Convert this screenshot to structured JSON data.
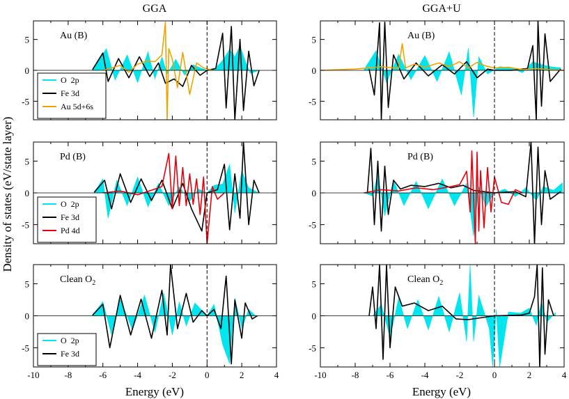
{
  "figure": {
    "ylabel": "Density of states (eV/state layer)",
    "xlabel": "Energy (eV)"
  },
  "colors": {
    "o2p": "#00e5ee",
    "fe3d": "#000000",
    "au": "#f0a400",
    "pd": "#e8000b",
    "axis": "#000000",
    "fermi": "#000000"
  },
  "chart_data": [
    {
      "id": "gga-au",
      "type": "line",
      "column_title": "GGA",
      "panel_label": "Au (B)",
      "xlim": [
        -10,
        4
      ],
      "ylim": [
        -8,
        8
      ],
      "xticks": [
        -10,
        -8,
        -6,
        -4,
        -2,
        0,
        2,
        4
      ],
      "yticks": [
        -5,
        0,
        5
      ],
      "fermi_level": 0,
      "legend": [
        "O  2p",
        "Fe 3d",
        "Au 5d+6s"
      ],
      "series": [
        {
          "name": "O  2p",
          "style": "filled",
          "x": [
            -6.6,
            -6.1,
            -5.8,
            -5.3,
            -4.6,
            -4.0,
            -3.4,
            -3.0,
            -2.6,
            -2.3,
            -1.8,
            -1.3,
            -0.8,
            -0.3,
            0.0,
            0.4,
            0.9,
            1.3,
            1.6,
            1.9,
            2.2,
            2.5,
            3.0
          ],
          "values": [
            0.1,
            2.2,
            3.5,
            -1.6,
            2.5,
            -2.0,
            3.0,
            -1.4,
            2.2,
            -0.6,
            1.8,
            -0.8,
            0.9,
            0.3,
            0.0,
            0.1,
            1.6,
            3.4,
            2.2,
            4.0,
            1.5,
            -0.5,
            0.0
          ]
        },
        {
          "name": "Fe 3d",
          "style": "line",
          "x": [
            -6.6,
            -6.0,
            -5.7,
            -5.1,
            -4.5,
            -3.9,
            -3.3,
            -2.8,
            -2.4,
            -1.9,
            -1.4,
            -0.9,
            -0.4,
            0.0,
            0.5,
            0.9,
            1.1,
            1.4,
            1.6,
            1.9,
            2.1,
            2.4,
            2.7,
            3.0
          ],
          "values": [
            0.1,
            2.8,
            -1.8,
            1.9,
            -1.2,
            2.2,
            -1.0,
            1.2,
            -2.1,
            -1.4,
            -2.6,
            0.8,
            -0.8,
            0.0,
            0.3,
            6.0,
            -6.1,
            7.1,
            -8.0,
            5.0,
            -6.5,
            3.1,
            -2.5,
            0.0
          ]
        },
        {
          "name": "Au 5d+6s",
          "style": "line",
          "x": [
            -6.0,
            -5.5,
            -5.0,
            -4.5,
            -4.0,
            -3.5,
            -3.0,
            -2.6,
            -2.4,
            -2.3,
            -2.2,
            -2.0,
            -1.7,
            -1.4,
            -1.0,
            -0.6,
            -0.2,
            0.3
          ],
          "values": [
            0.0,
            0.4,
            0.8,
            -0.3,
            1.0,
            1.5,
            1.4,
            2.5,
            7.8,
            -8.0,
            3.5,
            1.8,
            -2.8,
            2.9,
            -3.9,
            1.2,
            0.4,
            0.0
          ]
        }
      ]
    },
    {
      "id": "ggau-au",
      "type": "line",
      "column_title": "GGA+U",
      "panel_label": "Au (B)",
      "xlim": [
        -10,
        4
      ],
      "ylim": [
        -8,
        8
      ],
      "xticks": [
        -10,
        -8,
        -6,
        -4,
        -2,
        0,
        2,
        4
      ],
      "yticks": [
        -5,
        0,
        5
      ],
      "fermi_level": 0,
      "legend": [],
      "series": [
        {
          "name": "O  2p",
          "style": "filled",
          "x": [
            -7.5,
            -6.8,
            -6.2,
            -5.5,
            -4.8,
            -4.0,
            -3.3,
            -2.6,
            -1.9,
            -1.5,
            -1.2,
            -0.9,
            -0.4,
            0.3,
            1.0,
            1.6,
            2.2,
            2.6,
            3.2,
            3.8
          ],
          "values": [
            0.1,
            3.2,
            -2.0,
            2.6,
            -1.5,
            2.4,
            -1.8,
            3.0,
            -4.0,
            3.6,
            -7.6,
            2.2,
            -0.6,
            0.6,
            0.4,
            -0.4,
            1.4,
            1.0,
            0.6,
            0.4
          ]
        },
        {
          "name": "Fe 3d",
          "style": "line",
          "x": [
            -7.2,
            -6.9,
            -6.6,
            -6.5,
            -6.3,
            -6.1,
            -5.8,
            -5.2,
            -4.5,
            -3.8,
            -3.0,
            -2.3,
            -1.6,
            -1.0,
            -0.4,
            0.0,
            1.0,
            1.9,
            2.2,
            2.4,
            2.5,
            2.7,
            2.9,
            3.2,
            3.8
          ],
          "values": [
            0.2,
            -4.0,
            7.7,
            -8.0,
            7.8,
            -6.0,
            2.5,
            -1.4,
            1.2,
            -0.9,
            0.9,
            -0.6,
            1.4,
            -1.2,
            0.2,
            0.0,
            0.0,
            0.3,
            4.0,
            -8.0,
            7.9,
            -5.8,
            5.9,
            -1.8,
            0.2
          ]
        },
        {
          "name": "Au 5d+6s",
          "style": "line",
          "x": [
            -10.0,
            -8.0,
            -6.5,
            -5.5,
            -5.3,
            -5.1,
            -4.6,
            -4.0,
            -3.2,
            -2.6,
            -2.0,
            -1.5,
            -1.0,
            -0.5,
            0.0,
            0.8,
            1.6,
            2.4,
            3.2,
            4.0
          ],
          "values": [
            0.0,
            0.2,
            0.6,
            0.3,
            4.3,
            0.4,
            1.0,
            0.5,
            1.2,
            0.6,
            1.4,
            0.4,
            1.3,
            0.7,
            0.4,
            0.5,
            0.1,
            0.3,
            0.1,
            0.0
          ]
        }
      ]
    },
    {
      "id": "gga-pd",
      "type": "line",
      "column_title": "",
      "panel_label": "Pd (B)",
      "xlim": [
        -10,
        4
      ],
      "ylim": [
        -8,
        8
      ],
      "xticks": [
        -10,
        -8,
        -6,
        -4,
        -2,
        0,
        2,
        4
      ],
      "yticks": [
        -5,
        0,
        5
      ],
      "fermi_level": 0,
      "legend": [
        "O  2p",
        "Fe 3d",
        "Pd 4d"
      ],
      "series": [
        {
          "name": "O  2p",
          "style": "filled",
          "x": [
            -6.5,
            -6.0,
            -5.7,
            -5.2,
            -4.6,
            -4.0,
            -3.4,
            -2.8,
            -2.2,
            -1.6,
            -1.0,
            -0.5,
            0.0,
            0.4,
            0.9,
            1.3,
            1.6,
            2.0,
            2.4,
            3.0
          ],
          "values": [
            0.1,
            2.2,
            -4.0,
            2.0,
            -2.0,
            2.5,
            -2.2,
            1.5,
            -2.0,
            1.0,
            -1.3,
            0.6,
            0.0,
            1.2,
            1.4,
            4.5,
            -3.2,
            3.5,
            0.8,
            0.0
          ]
        },
        {
          "name": "Fe 3d",
          "style": "line",
          "x": [
            -6.5,
            -5.9,
            -5.5,
            -5.0,
            -4.4,
            -3.8,
            -3.2,
            -2.6,
            -2.0,
            -1.4,
            -0.9,
            -0.3,
            0.0,
            0.6,
            1.0,
            1.3,
            1.6,
            1.9,
            2.1,
            2.4,
            2.7,
            3.0
          ],
          "values": [
            0.1,
            2.0,
            -2.5,
            3.0,
            -1.5,
            2.2,
            -1.2,
            2.0,
            -2.5,
            1.5,
            -2.5,
            -6.0,
            0.0,
            0.5,
            4.5,
            -5.8,
            3.0,
            -4.0,
            8.0,
            -5.0,
            2.0,
            0.0
          ]
        },
        {
          "name": "Pd 4d",
          "style": "line",
          "x": [
            -6.0,
            -5.0,
            -4.0,
            -3.0,
            -2.6,
            -2.2,
            -2.0,
            -1.8,
            -1.6,
            -1.4,
            -1.2,
            -1.0,
            -0.8,
            -0.6,
            -0.4,
            -0.2,
            0.0,
            0.3,
            0.6,
            1.0
          ],
          "values": [
            0.0,
            0.3,
            -0.3,
            0.6,
            1.0,
            6.2,
            -2.5,
            5.8,
            -2.0,
            4.0,
            -2.0,
            3.0,
            -1.8,
            2.2,
            -3.4,
            2.5,
            -8.0,
            1.0,
            -1.0,
            0.0
          ]
        }
      ]
    },
    {
      "id": "ggau-pd",
      "type": "line",
      "column_title": "",
      "panel_label": "Pd (B)",
      "xlim": [
        -10,
        4
      ],
      "ylim": [
        -8,
        8
      ],
      "xticks": [
        -10,
        -8,
        -6,
        -4,
        -2,
        0,
        2,
        4
      ],
      "yticks": [
        -5,
        0,
        5
      ],
      "fermi_level": 0,
      "legend": [],
      "series": [
        {
          "name": "O  2p",
          "style": "filled",
          "x": [
            -7.5,
            -7.0,
            -6.7,
            -6.3,
            -5.8,
            -5.2,
            -4.5,
            -3.8,
            -3.0,
            -2.3,
            -1.6,
            -1.2,
            -0.9,
            -0.5,
            0.0,
            0.6,
            1.2,
            1.8,
            2.4,
            2.8,
            3.4,
            3.9
          ],
          "values": [
            0.0,
            -0.5,
            3.0,
            -3.6,
            2.0,
            -2.0,
            1.8,
            -2.5,
            2.2,
            -2.0,
            1.5,
            -6.8,
            1.0,
            -2.2,
            0.0,
            0.6,
            -0.6,
            0.8,
            -1.2,
            1.0,
            0.4,
            1.6
          ]
        },
        {
          "name": "Fe 3d",
          "style": "line",
          "x": [
            -7.3,
            -7.1,
            -6.9,
            -6.7,
            -6.5,
            -6.3,
            -6.1,
            -5.8,
            -5.4,
            -4.8,
            -4.0,
            -3.2,
            -2.5,
            -1.8,
            -1.2,
            0.0,
            1.2,
            1.8,
            2.1,
            2.3,
            2.5,
            2.7,
            2.9,
            3.2,
            3.8
          ],
          "values": [
            0.0,
            7.0,
            -5.0,
            5.0,
            -6.0,
            4.2,
            -3.4,
            2.0,
            0.6,
            1.2,
            1.0,
            1.5,
            0.8,
            1.2,
            0.4,
            0.0,
            0.2,
            -0.6,
            8.0,
            -8.0,
            7.2,
            -5.0,
            3.5,
            -1.0,
            0.2
          ]
        },
        {
          "name": "Pd 4d",
          "style": "line",
          "x": [
            -7.5,
            -6.5,
            -5.5,
            -4.5,
            -3.5,
            -2.5,
            -2.0,
            -1.6,
            -1.4,
            -1.3,
            -1.1,
            -1.0,
            -0.9,
            -0.8,
            -0.6,
            -0.4,
            -0.2,
            0.0,
            0.4,
            0.8,
            1.2,
            1.6
          ],
          "values": [
            0.0,
            0.5,
            0.3,
            0.8,
            0.5,
            1.0,
            1.3,
            3.4,
            -3.0,
            6.6,
            -8.0,
            6.4,
            -6.0,
            3.5,
            -5.5,
            4.0,
            -3.0,
            2.5,
            -1.5,
            -1.8,
            0.5,
            0.0
          ]
        }
      ]
    },
    {
      "id": "gga-clean",
      "type": "line",
      "column_title": "",
      "panel_label": "Clean O",
      "panel_label_sub": "2",
      "xlim": [
        -10,
        4
      ],
      "ylim": [
        -8,
        8
      ],
      "xticks": [
        -10,
        -8,
        -6,
        -4,
        -2,
        0,
        2,
        4
      ],
      "yticks": [
        -5,
        0,
        5
      ],
      "fermi_level": 0,
      "legend": [
        "O  2p",
        "Fe 3d"
      ],
      "series": [
        {
          "name": "O  2p",
          "style": "filled",
          "x": [
            -6.6,
            -6.0,
            -5.5,
            -5.0,
            -4.3,
            -3.6,
            -3.0,
            -2.5,
            -2.0,
            -1.6,
            -1.2,
            -0.7,
            0.0,
            0.4,
            0.9,
            1.3,
            1.6,
            2.0,
            2.4,
            2.8
          ],
          "values": [
            0.1,
            2.2,
            -3.0,
            2.6,
            -2.2,
            3.2,
            -2.6,
            3.6,
            -3.0,
            2.2,
            -1.6,
            2.0,
            0.0,
            1.8,
            -4.5,
            -7.5,
            2.8,
            -2.0,
            1.0,
            0.0
          ]
        },
        {
          "name": "Fe 3d",
          "style": "line",
          "x": [
            -6.6,
            -6.0,
            -5.6,
            -5.0,
            -4.4,
            -3.8,
            -3.2,
            -2.6,
            -2.3,
            -2.1,
            -1.7,
            -1.2,
            -0.8,
            -0.3,
            0.0,
            0.4,
            0.8,
            1.1,
            1.4,
            1.6,
            2.0,
            2.2,
            2.6,
            2.9
          ],
          "values": [
            0.1,
            1.8,
            -5.0,
            3.2,
            -3.0,
            2.6,
            -3.5,
            4.0,
            -3.0,
            8.0,
            -2.0,
            3.5,
            -1.0,
            0.8,
            0.0,
            1.0,
            -2.0,
            6.2,
            -7.5,
            2.5,
            -3.5,
            2.0,
            -0.5,
            0.0
          ]
        }
      ]
    },
    {
      "id": "ggau-clean",
      "type": "line",
      "column_title": "",
      "panel_label": "Clean O",
      "panel_label_sub": "2",
      "xlim": [
        -10,
        4
      ],
      "ylim": [
        -8,
        8
      ],
      "xticks": [
        -10,
        -8,
        -6,
        -4,
        -2,
        0,
        2,
        4
      ],
      "yticks": [
        -5,
        0,
        5
      ],
      "fermi_level": 0,
      "legend": [],
      "series": [
        {
          "name": "O  2p",
          "style": "filled",
          "x": [
            -7.0,
            -6.5,
            -6.0,
            -5.5,
            -5.0,
            -4.4,
            -3.8,
            -3.2,
            -2.6,
            -2.0,
            -1.6,
            -1.4,
            -1.2,
            -0.9,
            -0.3,
            -0.1,
            0.1,
            0.3,
            0.8,
            1.5,
            2.0,
            2.4,
            2.7,
            3.0,
            3.5
          ],
          "values": [
            0.0,
            1.8,
            -3.4,
            2.8,
            -2.0,
            2.5,
            -2.2,
            3.0,
            -2.5,
            3.6,
            -4.0,
            8.0,
            -4.0,
            3.2,
            -2.0,
            -8.0,
            1.0,
            -8.0,
            0.6,
            0.4,
            1.2,
            -1.5,
            2.2,
            -1.0,
            0.5
          ]
        },
        {
          "name": "Fe 3d",
          "style": "line",
          "x": [
            -7.2,
            -7.0,
            -6.8,
            -6.6,
            -6.4,
            -6.2,
            -6.0,
            -5.7,
            -5.3,
            -4.6,
            -3.8,
            -3.0,
            -2.2,
            -1.5,
            0.0,
            1.5,
            2.0,
            2.3,
            2.45,
            2.6,
            2.75,
            2.9,
            3.1,
            3.4
          ],
          "values": [
            0.0,
            4.5,
            -2.0,
            8.0,
            -6.8,
            8.0,
            -5.0,
            4.5,
            1.5,
            2.0,
            0.8,
            1.5,
            -0.5,
            -0.6,
            0.0,
            0.1,
            0.4,
            3.0,
            8.0,
            -8.0,
            7.5,
            -6.0,
            2.5,
            0.0
          ]
        }
      ]
    }
  ]
}
